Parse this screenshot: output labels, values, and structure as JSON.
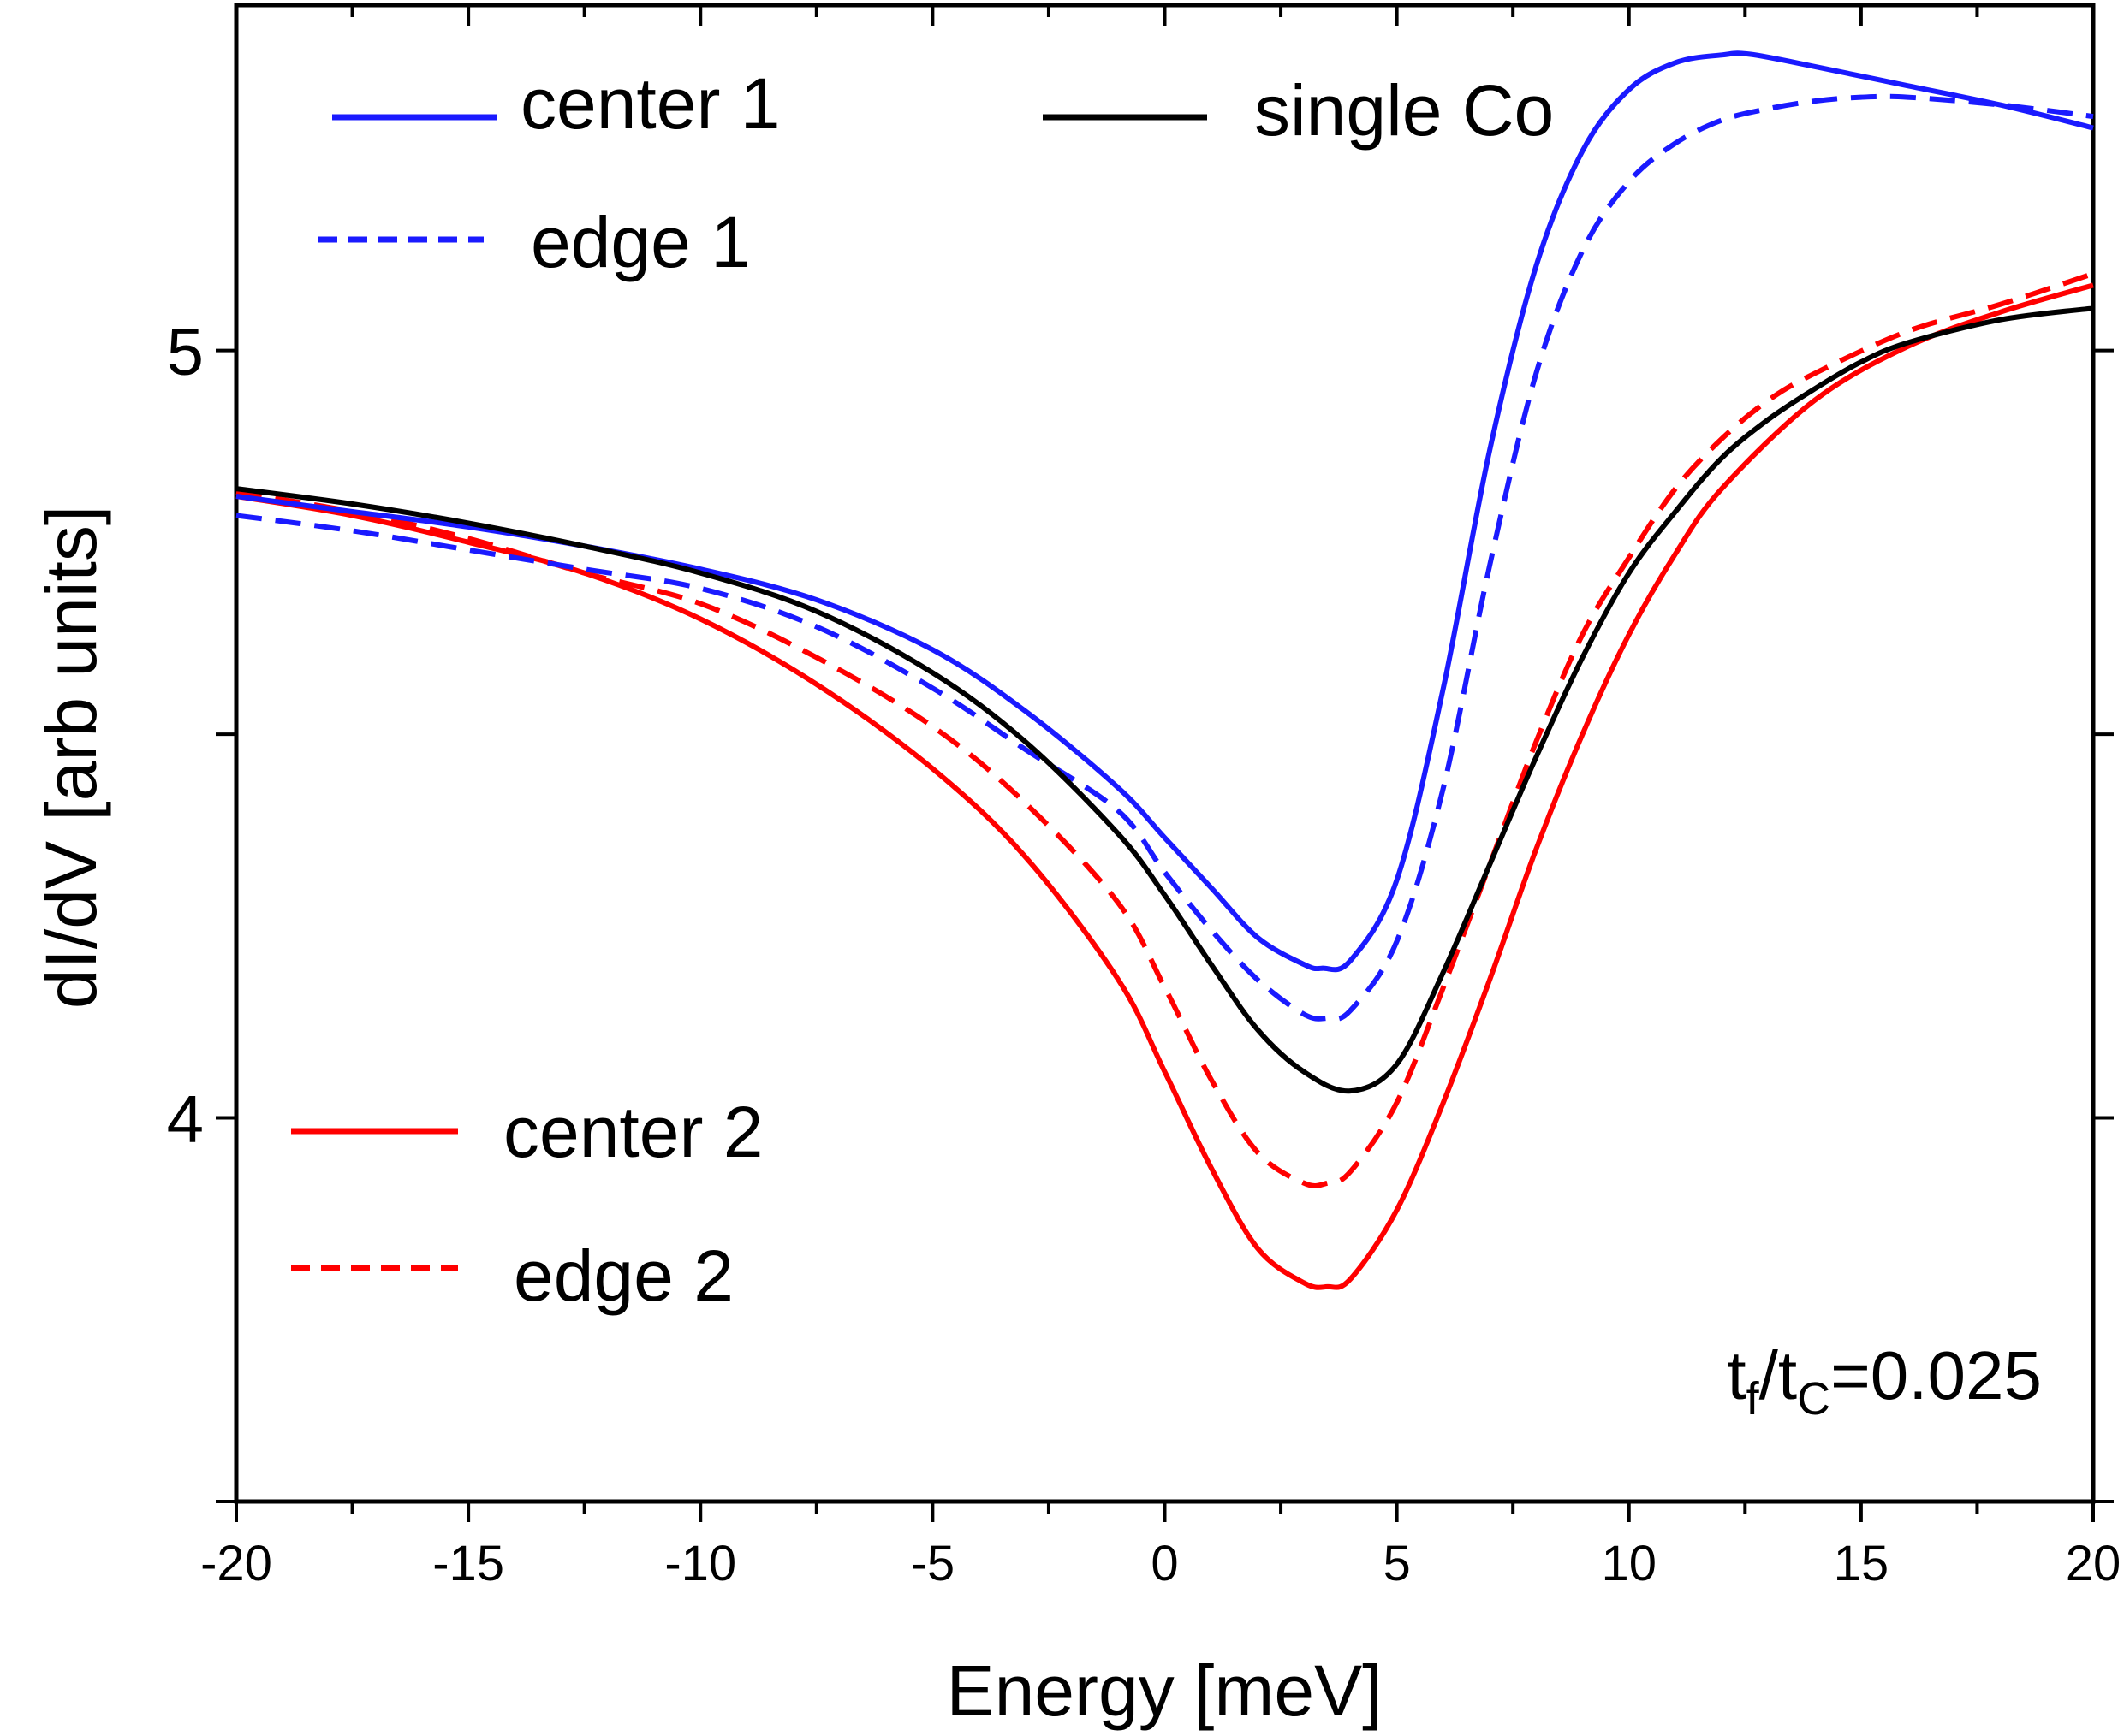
{
  "chart_data": {
    "type": "line",
    "xlabel": "Energy [meV]",
    "ylabel": "dI/dV [arb units]",
    "xlim": [
      -20,
      20
    ],
    "ylim": [
      3.5,
      5.45
    ],
    "xticks": [
      -20,
      -15,
      -10,
      -5,
      0,
      5,
      10,
      15,
      20
    ],
    "xtick_labels": [
      "-20",
      "-15",
      "-10",
      "-5",
      "0",
      "5",
      "10",
      "15",
      "20"
    ],
    "yticks_labeled": [
      4,
      5
    ],
    "ytick_labels": [
      "4",
      "5"
    ],
    "yticks_minor": [
      3.5,
      4.5
    ],
    "annotation": {
      "base1": "t",
      "sub1": "f",
      "slash": "/",
      "base2": "t",
      "sub2": "C",
      "rest": "=0.025"
    },
    "colors": {
      "blue": "#1a1aff",
      "red": "#ff0000",
      "black": "#000000"
    },
    "series": [
      {
        "name": "center 1",
        "color": "#1a1aff",
        "dash": "solid",
        "x": [
          -20,
          -17.5,
          -15,
          -12.5,
          -10,
          -7.5,
          -5,
          -3,
          -1,
          0,
          1,
          2,
          3,
          3.4,
          4,
          5,
          6,
          7,
          8,
          9,
          10,
          11,
          12,
          12.6,
          14,
          16,
          18,
          20
        ],
        "y": [
          4.81,
          4.79,
          4.77,
          4.745,
          4.715,
          4.675,
          4.61,
          4.53,
          4.43,
          4.365,
          4.3,
          4.235,
          4.2,
          4.195,
          4.205,
          4.31,
          4.56,
          4.87,
          5.11,
          5.26,
          5.34,
          5.375,
          5.385,
          5.386,
          5.37,
          5.345,
          5.32,
          5.29
        ]
      },
      {
        "name": "edge 1",
        "color": "#1a1aff",
        "dash": "dashed",
        "x": [
          -20,
          -17.5,
          -15,
          -12.5,
          -10,
          -7.5,
          -5,
          -3,
          -1,
          0,
          1,
          2,
          3,
          3.5,
          4,
          5,
          6,
          7,
          8,
          9,
          10,
          11,
          12,
          13,
          14,
          15,
          16,
          18,
          20
        ],
        "y": [
          4.785,
          4.765,
          4.74,
          4.715,
          4.69,
          4.64,
          4.56,
          4.48,
          4.4,
          4.32,
          4.245,
          4.18,
          4.135,
          4.13,
          4.14,
          4.23,
          4.43,
          4.72,
          4.97,
          5.13,
          5.22,
          5.27,
          5.3,
          5.315,
          5.325,
          5.33,
          5.33,
          5.32,
          5.305
        ]
      },
      {
        "name": "single Co",
        "color": "#000000",
        "dash": "solid",
        "x": [
          -20,
          -17.5,
          -15,
          -12.5,
          -10,
          -7.5,
          -5,
          -3,
          -1,
          0,
          1,
          2,
          3,
          4,
          5,
          6,
          7,
          8,
          9,
          10,
          11,
          12,
          13,
          14,
          15,
          16,
          18,
          20
        ],
        "y": [
          4.82,
          4.8,
          4.775,
          4.745,
          4.71,
          4.66,
          4.58,
          4.49,
          4.37,
          4.29,
          4.2,
          4.115,
          4.06,
          4.035,
          4.07,
          4.19,
          4.33,
          4.47,
          4.6,
          4.71,
          4.79,
          4.86,
          4.91,
          4.95,
          4.985,
          5.01,
          5.04,
          5.055
        ]
      },
      {
        "name": "center 2",
        "color": "#ff0000",
        "dash": "solid",
        "x": [
          -20,
          -17.5,
          -15,
          -12.5,
          -10,
          -7.5,
          -5,
          -3,
          -1,
          0,
          1,
          2,
          3,
          3.5,
          4,
          5,
          6,
          7,
          8,
          9,
          10,
          11,
          12,
          14,
          16,
          18,
          20
        ],
        "y": [
          4.81,
          4.785,
          4.75,
          4.71,
          4.65,
          4.565,
          4.455,
          4.34,
          4.18,
          4.06,
          3.935,
          3.83,
          3.785,
          3.78,
          3.79,
          3.88,
          4.02,
          4.18,
          4.35,
          4.5,
          4.63,
          4.735,
          4.82,
          4.935,
          5.005,
          5.05,
          5.085
        ]
      },
      {
        "name": "edge 2",
        "color": "#ff0000",
        "dash": "dashed",
        "x": [
          -20,
          -17.5,
          -15,
          -12.5,
          -10,
          -7.5,
          -5,
          -3,
          -1,
          0,
          1,
          2,
          3,
          3.5,
          4,
          5,
          6,
          7,
          8,
          9,
          10,
          11,
          12,
          13,
          14,
          16,
          18,
          20
        ],
        "y": [
          4.815,
          4.79,
          4.755,
          4.71,
          4.67,
          4.6,
          4.51,
          4.41,
          4.28,
          4.17,
          4.05,
          3.955,
          3.915,
          3.915,
          3.93,
          4.02,
          4.17,
          4.33,
          4.49,
          4.63,
          4.73,
          4.82,
          4.885,
          4.935,
          4.97,
          5.025,
          5.06,
          5.1
        ]
      }
    ]
  }
}
